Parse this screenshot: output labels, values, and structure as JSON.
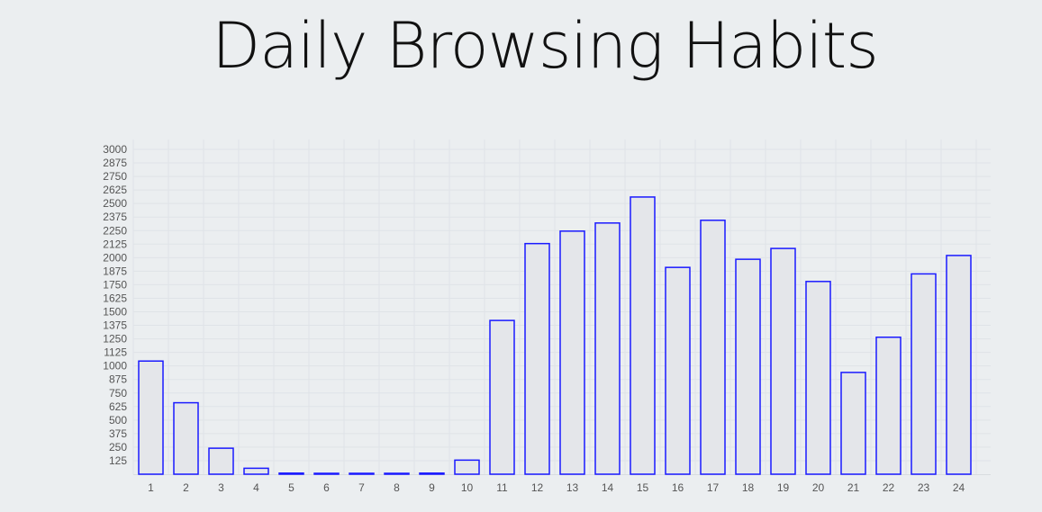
{
  "chart_data": {
    "type": "bar",
    "title": "Daily Browsing Habits",
    "xlabel": "",
    "ylabel": "",
    "categories": [
      "1",
      "2",
      "3",
      "4",
      "5",
      "6",
      "7",
      "8",
      "9",
      "10",
      "11",
      "12",
      "13",
      "14",
      "15",
      "16",
      "17",
      "18",
      "19",
      "20",
      "21",
      "22",
      "23",
      "24"
    ],
    "values": [
      1045,
      660,
      240,
      55,
      10,
      5,
      5,
      5,
      10,
      130,
      1420,
      2130,
      2245,
      2320,
      2560,
      1910,
      2345,
      1985,
      2085,
      1780,
      940,
      1265,
      1850,
      2020
    ],
    "ylim": [
      0,
      3000
    ],
    "yticks": [
      "125",
      "250",
      "375",
      "500",
      "625",
      "750",
      "875",
      "1000",
      "1125",
      "1250",
      "1375",
      "1500",
      "1625",
      "1750",
      "1875",
      "2000",
      "2125",
      "2250",
      "2375",
      "2500",
      "2625",
      "2750",
      "2875",
      "3000"
    ],
    "grid": true,
    "colors": {
      "bar_fill": "#e4e6ea",
      "bar_stroke": "#1a1aff",
      "grid": "#dfe3e7",
      "background": "#ebeef0"
    }
  }
}
